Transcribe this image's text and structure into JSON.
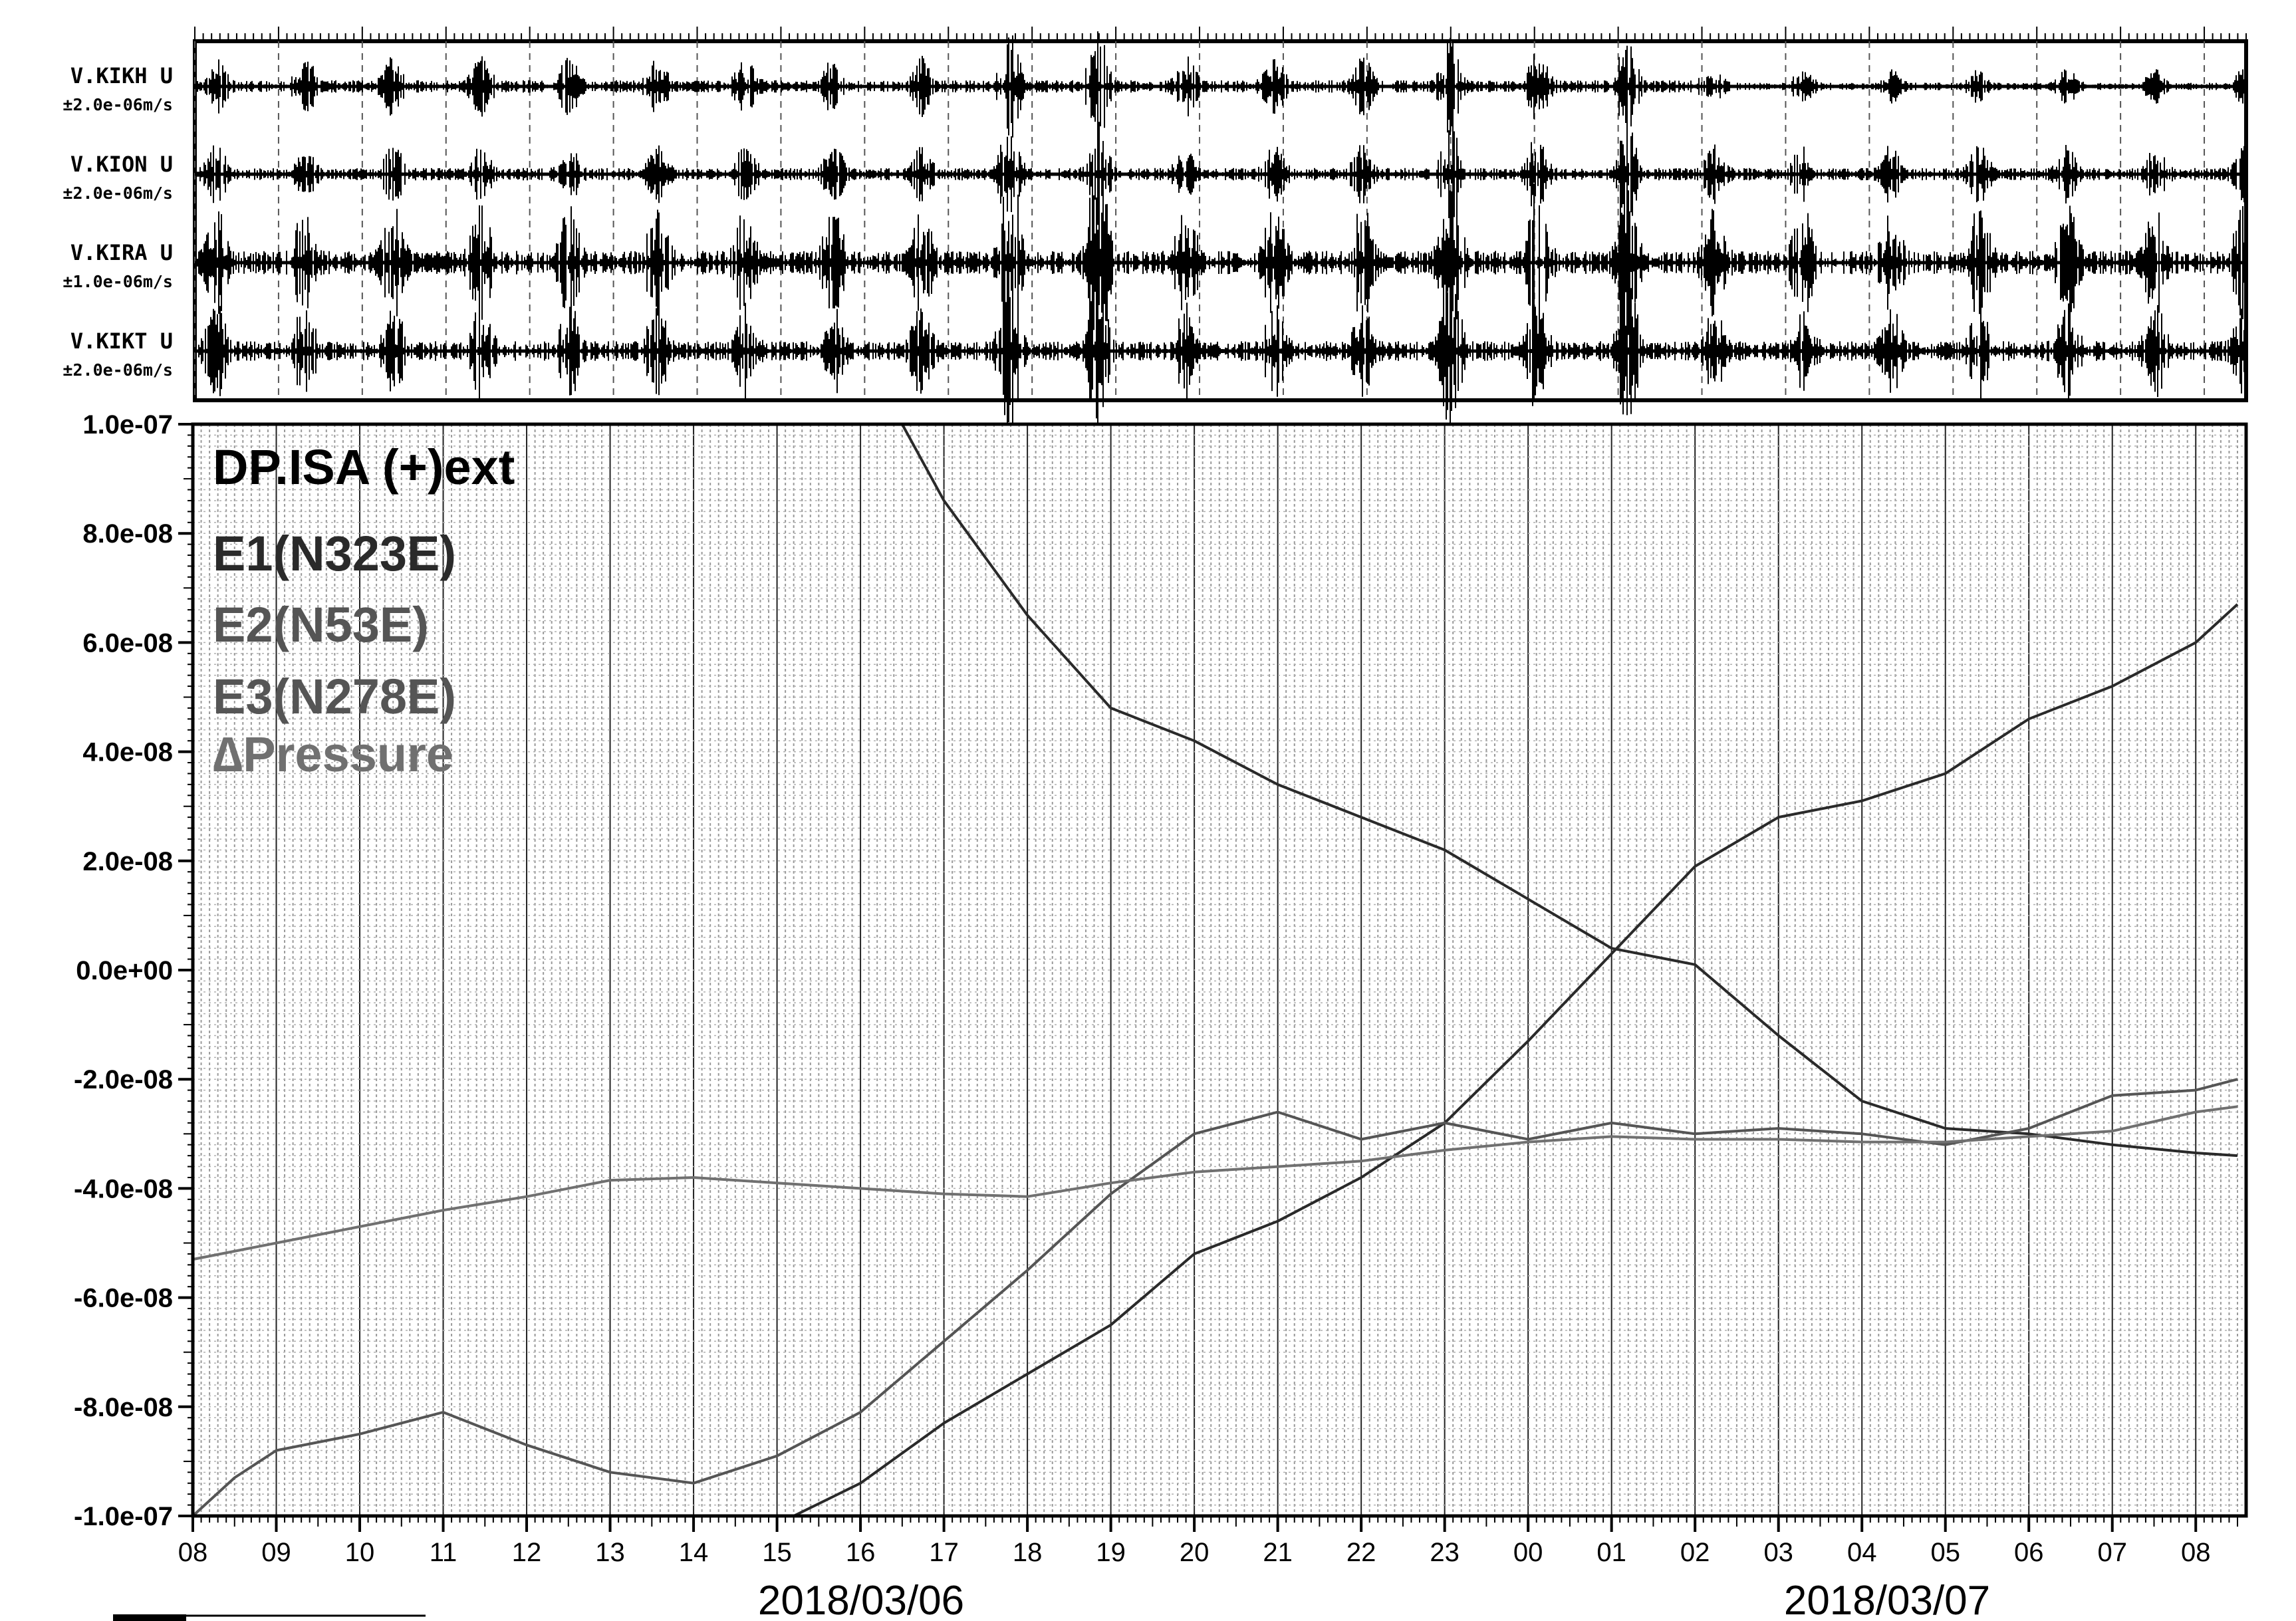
{
  "seismic_panel": {
    "stations": [
      {
        "name": "V.KIKH U",
        "scale": "±2.0e-06m/s"
      },
      {
        "name": "V.KION U",
        "scale": "±2.0e-06m/s"
      },
      {
        "name": "V.KIRA U",
        "scale": "±1.0e-06m/s"
      },
      {
        "name": "V.KIKT U",
        "scale": "±2.0e-06m/s"
      }
    ]
  },
  "strain_panel": {
    "title": "DP.ISA (+)ext",
    "legend": [
      {
        "label": "E1(N323E)",
        "color": "#2a2a2a"
      },
      {
        "label": "E2(N53E)",
        "color": "#555555"
      },
      {
        "label": "E3(N278E)",
        "color": "#555555"
      },
      {
        "label": "∆Pressure",
        "color": "#707070"
      }
    ]
  },
  "chart_data": {
    "type": "line",
    "x_unit": "hour",
    "xlim": [
      0,
      24.5
    ],
    "ylim": [
      -1e-07,
      1e-07
    ],
    "y_ticks": [
      {
        "value": 1e-07,
        "label": "1.0e-07"
      },
      {
        "value": 8e-08,
        "label": "8.0e-08"
      },
      {
        "value": 6e-08,
        "label": "6.0e-08"
      },
      {
        "value": 4e-08,
        "label": "4.0e-08"
      },
      {
        "value": 2e-08,
        "label": "2.0e-08"
      },
      {
        "value": 0.0,
        "label": "0.0e+00"
      },
      {
        "value": -2e-08,
        "label": "-2.0e-08"
      },
      {
        "value": -4e-08,
        "label": "-4.0e-08"
      },
      {
        "value": -6e-08,
        "label": "-6.0e-08"
      },
      {
        "value": -8e-08,
        "label": "-8.0e-08"
      },
      {
        "value": -1e-07,
        "label": "-1.0e-07"
      }
    ],
    "x_tick_labels": [
      "08",
      "09",
      "10",
      "11",
      "12",
      "13",
      "14",
      "15",
      "16",
      "17",
      "18",
      "19",
      "20",
      "21",
      "22",
      "23",
      "00",
      "01",
      "02",
      "03",
      "04",
      "05",
      "06",
      "07",
      "08"
    ],
    "date_labels": [
      {
        "text": "2018/03/06",
        "at_hour": 8.0
      },
      {
        "text": "2018/03/07",
        "at_hour": 20.3
      }
    ],
    "series": [
      {
        "color": "#2a2a2a",
        "points": [
          [
            8.5,
            1e-07
          ],
          [
            9.0,
            8.6e-08
          ],
          [
            10.0,
            6.5e-08
          ],
          [
            11.0,
            4.8e-08
          ],
          [
            12.0,
            4.2e-08
          ],
          [
            13.0,
            3.4e-08
          ],
          [
            14.0,
            2.8e-08
          ],
          [
            15.0,
            2.2e-08
          ],
          [
            16.0,
            1.3e-08
          ],
          [
            17.0,
            4e-09
          ],
          [
            18.0,
            1e-09
          ],
          [
            19.0,
            -1.2e-08
          ],
          [
            20.0,
            -2.4e-08
          ],
          [
            21.0,
            -2.9e-08
          ],
          [
            22.0,
            -3e-08
          ],
          [
            23.0,
            -3.2e-08
          ],
          [
            24.0,
            -3.35e-08
          ],
          [
            24.5,
            -3.4e-08
          ]
        ]
      },
      {
        "color": "#2a2a2a",
        "points": [
          [
            7.2,
            -1e-07
          ],
          [
            8.0,
            -9.4e-08
          ],
          [
            9.0,
            -8.3e-08
          ],
          [
            10.0,
            -7.4e-08
          ],
          [
            11.0,
            -6.5e-08
          ],
          [
            12.0,
            -5.2e-08
          ],
          [
            13.0,
            -4.6e-08
          ],
          [
            14.0,
            -3.8e-08
          ],
          [
            15.0,
            -2.8e-08
          ],
          [
            16.0,
            -1.3e-08
          ],
          [
            17.0,
            3e-09
          ],
          [
            18.0,
            1.9e-08
          ],
          [
            19.0,
            2.8e-08
          ],
          [
            20.0,
            3.1e-08
          ],
          [
            21.0,
            3.6e-08
          ],
          [
            22.0,
            4.6e-08
          ],
          [
            23.0,
            5.2e-08
          ],
          [
            24.0,
            6e-08
          ],
          [
            24.5,
            6.7e-08
          ]
        ]
      },
      {
        "color": "#555555",
        "points": [
          [
            0.0,
            -1e-07
          ],
          [
            0.5,
            -9.3e-08
          ],
          [
            1.0,
            -8.8e-08
          ],
          [
            2.0,
            -8.5e-08
          ],
          [
            3.0,
            -8.1e-08
          ],
          [
            4.0,
            -8.7e-08
          ],
          [
            5.0,
            -9.2e-08
          ],
          [
            6.0,
            -9.4e-08
          ],
          [
            7.0,
            -8.9e-08
          ],
          [
            8.0,
            -8.1e-08
          ],
          [
            9.0,
            -6.8e-08
          ],
          [
            10.0,
            -5.5e-08
          ],
          [
            11.0,
            -4.1e-08
          ],
          [
            12.0,
            -3e-08
          ],
          [
            13.0,
            -2.6e-08
          ],
          [
            14.0,
            -3.1e-08
          ],
          [
            15.0,
            -2.8e-08
          ],
          [
            16.0,
            -3.1e-08
          ],
          [
            17.0,
            -2.8e-08
          ],
          [
            18.0,
            -3e-08
          ],
          [
            19.0,
            -2.9e-08
          ],
          [
            20.0,
            -3e-08
          ],
          [
            21.0,
            -3.2e-08
          ],
          [
            22.0,
            -2.9e-08
          ],
          [
            23.0,
            -2.3e-08
          ],
          [
            24.0,
            -2.2e-08
          ],
          [
            24.5,
            -2e-08
          ]
        ]
      },
      {
        "color": "#707070",
        "points": [
          [
            0.0,
            -5.3e-08
          ],
          [
            1.0,
            -5e-08
          ],
          [
            2.0,
            -4.7e-08
          ],
          [
            3.0,
            -4.4e-08
          ],
          [
            4.0,
            -4.15e-08
          ],
          [
            5.0,
            -3.85e-08
          ],
          [
            6.0,
            -3.8e-08
          ],
          [
            7.0,
            -3.9e-08
          ],
          [
            8.0,
            -4e-08
          ],
          [
            9.0,
            -4.1e-08
          ],
          [
            10.0,
            -4.15e-08
          ],
          [
            11.0,
            -3.9e-08
          ],
          [
            12.0,
            -3.7e-08
          ],
          [
            13.0,
            -3.6e-08
          ],
          [
            14.0,
            -3.5e-08
          ],
          [
            15.0,
            -3.3e-08
          ],
          [
            16.0,
            -3.15e-08
          ],
          [
            17.0,
            -3.05e-08
          ],
          [
            18.0,
            -3.1e-08
          ],
          [
            19.0,
            -3.1e-08
          ],
          [
            20.0,
            -3.15e-08
          ],
          [
            21.0,
            -3.15e-08
          ],
          [
            22.0,
            -3.05e-08
          ],
          [
            23.0,
            -2.95e-08
          ],
          [
            24.0,
            -2.6e-08
          ],
          [
            24.5,
            -2.5e-08
          ]
        ]
      }
    ]
  }
}
